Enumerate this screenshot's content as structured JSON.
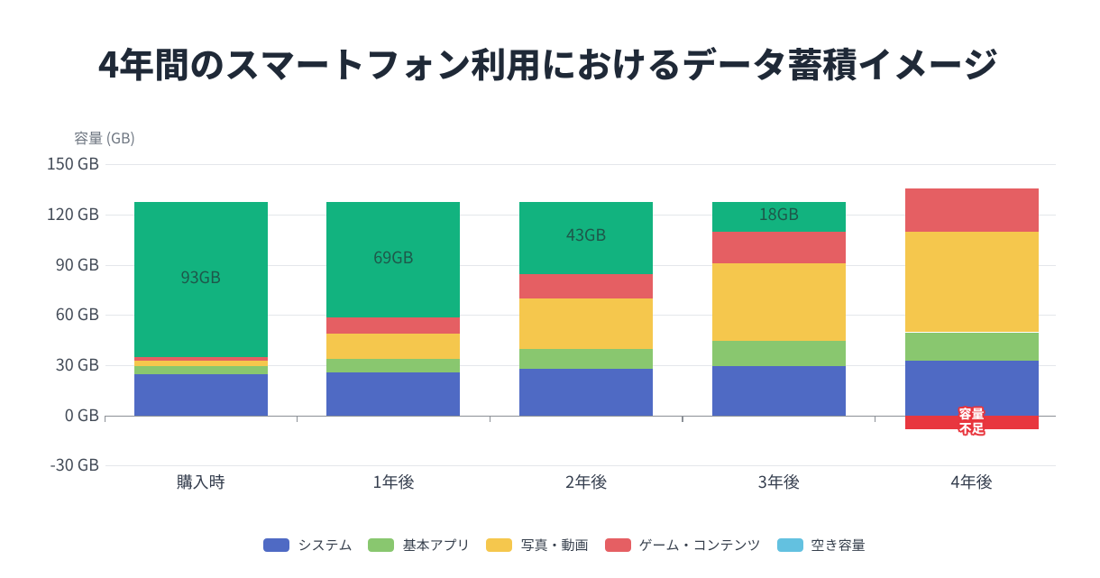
{
  "chart_data": {
    "type": "stacked-bar",
    "title": "4年間のスマートフォン利用におけるデータ蓄積イメージ",
    "ylabel": "容量 (GB)",
    "yticks": [
      {
        "value": 150,
        "label": "150 GB"
      },
      {
        "value": 120,
        "label": "120 GB"
      },
      {
        "value": 90,
        "label": "90 GB"
      },
      {
        "value": 60,
        "label": "60 GB"
      },
      {
        "value": 30,
        "label": "30 GB"
      },
      {
        "value": 0,
        "label": "0 GB"
      },
      {
        "value": -30,
        "label": "-30 GB"
      }
    ],
    "ylim": [
      -30,
      150
    ],
    "grid": true,
    "legend_position": "bottom",
    "categories": [
      "購入時",
      "1年後",
      "2年後",
      "3年後",
      "4年後"
    ],
    "series": [
      {
        "name": "システム",
        "color": "#4f6ac4",
        "values": [
          25,
          26,
          28,
          30,
          33
        ]
      },
      {
        "name": "基本アプリ",
        "color": "#89c76f",
        "values": [
          5,
          8,
          12,
          15,
          17
        ]
      },
      {
        "name": "写真・動画",
        "color": "#f5c74d",
        "values": [
          3,
          15,
          30,
          46,
          60
        ]
      },
      {
        "name": "ゲーム・コンテンツ",
        "color": "#e55f63",
        "values": [
          2,
          10,
          15,
          19,
          26
        ]
      },
      {
        "name": "空き容量",
        "color": "#12b37f",
        "legend_color": "#63c1e0",
        "values": [
          93,
          69,
          43,
          18,
          0
        ],
        "value_labels": [
          "93GB",
          "69GB",
          "43GB",
          "18GB",
          ""
        ]
      }
    ],
    "overflow_series": {
      "name": "容量不足",
      "color": "#e8373f",
      "values": [
        0,
        0,
        0,
        0,
        -8
      ],
      "label_lines": [
        "容量",
        "不足"
      ],
      "label_color": "#ffffff"
    },
    "style": {
      "title_color": "#1f2937",
      "axis_color": "#8b9096",
      "grid_color": "#e4e7eb",
      "tick_label_color": "#434b57",
      "category_label_color": "#353e4e",
      "value_label_color": "#1e574a",
      "legend_label_color": "#37404d",
      "background": "#ffffff"
    }
  }
}
